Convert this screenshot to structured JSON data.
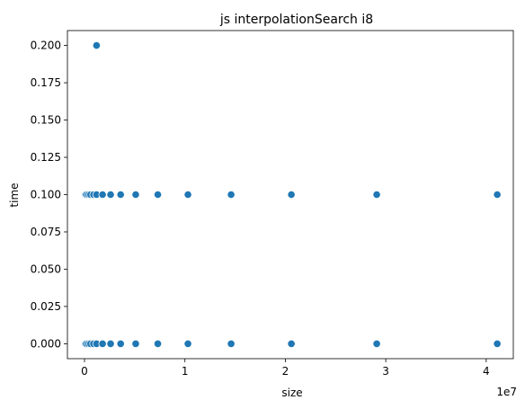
{
  "chart_data": {
    "type": "scatter",
    "title": "js interpolationSearch i8",
    "xlabel": "size",
    "ylabel": "time",
    "x_offset_label": "1e7",
    "xlim": [
      -1700000,
      42700000
    ],
    "ylim": [
      -0.01,
      0.21
    ],
    "x_ticks": [
      0,
      10000000,
      20000000,
      30000000,
      40000000
    ],
    "x_tick_labels": [
      "0",
      "1",
      "2",
      "3",
      "4"
    ],
    "y_ticks": [
      0.0,
      0.025,
      0.05,
      0.075,
      0.1,
      0.125,
      0.15,
      0.175,
      0.2
    ],
    "y_tick_labels": [
      "0.000",
      "0.025",
      "0.050",
      "0.075",
      "0.100",
      "0.125",
      "0.150",
      "0.175",
      "0.200"
    ],
    "grid": false,
    "marker_color": "#1f77b4",
    "series": [
      {
        "x": [
          10000,
          20000,
          40000,
          70000,
          100000,
          200000,
          400000,
          600000,
          900000,
          1200000,
          1800000,
          2600000,
          3600000,
          5100000,
          7300000,
          10300000,
          14600000,
          20600000,
          29100000,
          41100000,
          10000,
          20000,
          40000,
          70000,
          100000,
          200000,
          400000,
          600000,
          900000,
          1200000,
          1800000,
          2600000,
          3600000,
          5100000,
          7300000,
          10300000,
          14600000,
          20600000,
          29100000,
          41100000,
          1200000
        ],
        "y": [
          0.0,
          0.0,
          0.0,
          0.0,
          0.0,
          0.0,
          0.0,
          0.0,
          0.0,
          0.0,
          0.0,
          0.0,
          0.0,
          0.0,
          0.0,
          0.0,
          0.0,
          0.0,
          0.0,
          0.0,
          0.1,
          0.1,
          0.1,
          0.1,
          0.1,
          0.1,
          0.1,
          0.1,
          0.1,
          0.1,
          0.1,
          0.1,
          0.1,
          0.1,
          0.1,
          0.1,
          0.1,
          0.1,
          0.1,
          0.1,
          0.2
        ]
      }
    ]
  }
}
